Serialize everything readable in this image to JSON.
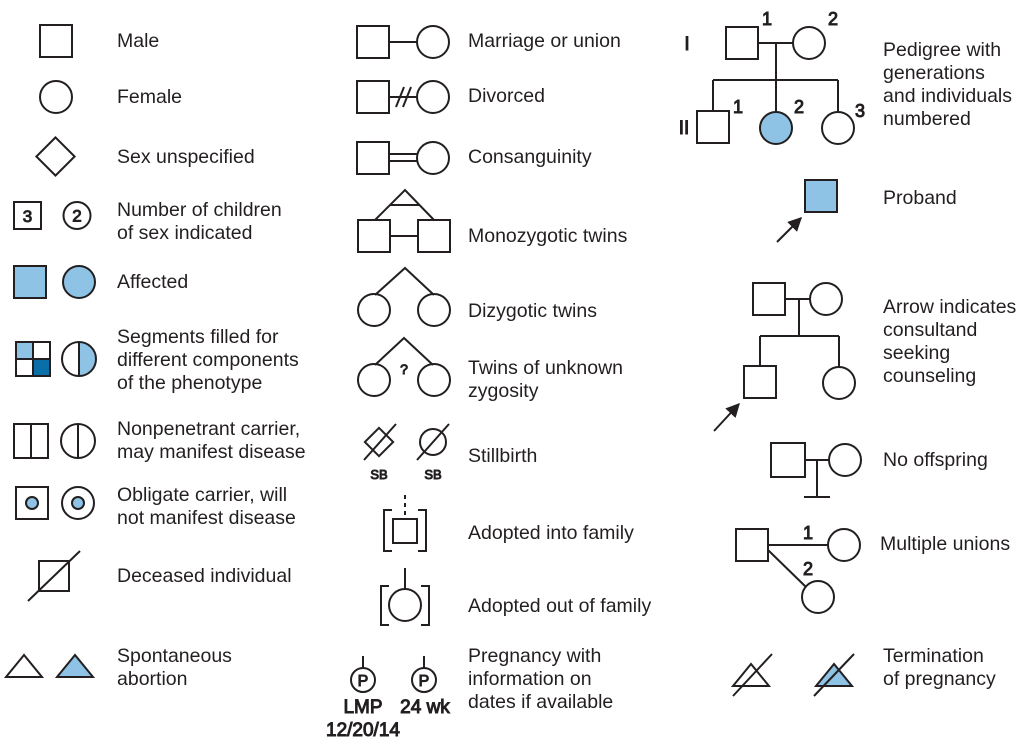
{
  "colors": {
    "stroke": "#231f20",
    "affected_fill": "#8fc3e6",
    "segment_dark_fill": "#0a6fa8",
    "background": "#ffffff"
  },
  "column1": {
    "male": "Male",
    "female": "Female",
    "sex_unspecified": "Sex unspecified",
    "number_of_children": "Number of children\nof sex indicated",
    "number_male": "3",
    "number_female": "2",
    "affected": "Affected",
    "segments": "Segments filled for\ndifferent components\nof the phenotype",
    "nonpenetrant": "Nonpenetrant carrier,\nmay manifest disease",
    "obligate": "Obligate carrier, will\nnot manifest disease",
    "deceased": "Deceased individual",
    "spontaneous_abortion": "Spontaneous\nabortion"
  },
  "column2": {
    "marriage": "Marriage or union",
    "divorced": "Divorced",
    "consanguinity": "Consanguinity",
    "monozygotic": "Monozygotic twins",
    "dizygotic": "Dizygotic twins",
    "unknown_twins": "Twins of unknown\nzygosity",
    "unknown_mark": "?",
    "stillbirth": "Stillbirth",
    "sb": "SB",
    "adopted_in": "Adopted into family",
    "adopted_out": "Adopted out of family",
    "pregnancy": "Pregnancy with\ninformation on\ndates if available",
    "pregnancy_mark": "P",
    "lmp": "LMP",
    "lmp_date": "12/20/14",
    "weeks": "24 wk"
  },
  "column3": {
    "pedigree": "Pedigree with\ngenerations\nand individuals\nnumbered",
    "gen_one": "I",
    "gen_two": "II",
    "num_1": "1",
    "num_2": "2",
    "num_3": "3",
    "proband": "Proband",
    "consultand": "Arrow indicates\nconsultand\nseeking\ncounseling",
    "no_offspring": "No offspring",
    "multiple_unions": "Multiple unions",
    "termination": "Termination\nof pregnancy"
  }
}
